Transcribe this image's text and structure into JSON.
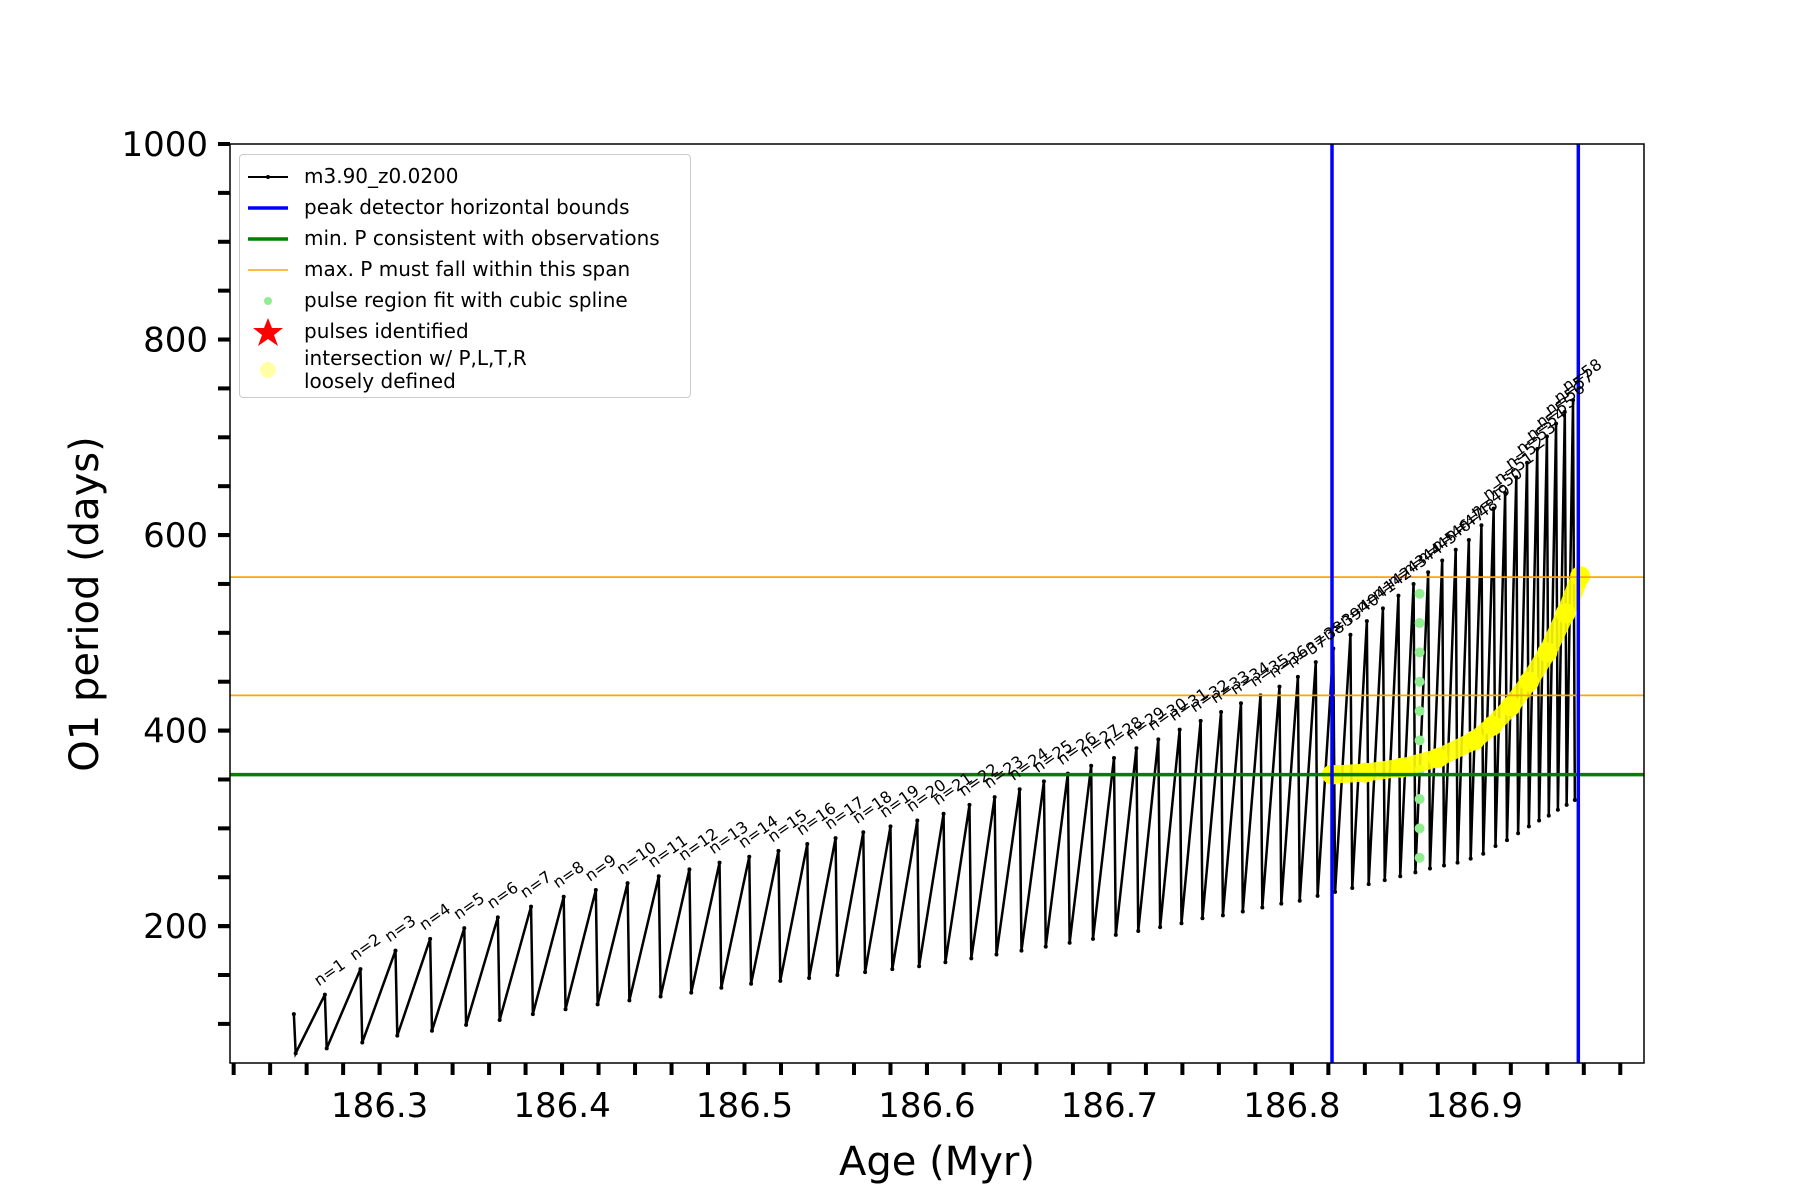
{
  "chart_data": {
    "type": "line",
    "xlabel": "Age (Myr)",
    "ylabel": "O1 period (days)",
    "xlim": [
      186.218,
      186.993
    ],
    "ylim": [
      60,
      1000
    ],
    "xticks": [
      186.3,
      186.4,
      186.5,
      186.6,
      186.7,
      186.8,
      186.9
    ],
    "xminor_ticks": [
      186.22,
      186.24,
      186.26,
      186.28,
      186.3,
      186.32,
      186.34,
      186.36,
      186.38,
      186.4,
      186.42,
      186.44,
      186.46,
      186.48,
      186.5,
      186.52,
      186.54,
      186.56,
      186.58,
      186.6,
      186.62,
      186.64,
      186.66,
      186.68,
      186.7,
      186.72,
      186.74,
      186.76,
      186.78,
      186.8,
      186.82,
      186.84,
      186.86,
      186.88,
      186.9,
      186.92,
      186.94,
      186.96,
      186.98
    ],
    "yticks": [
      200,
      400,
      600,
      800,
      1000
    ],
    "yminor_ticks": [
      100,
      150,
      200,
      250,
      300,
      350,
      400,
      450,
      500,
      550,
      600,
      650,
      700,
      750,
      800,
      850,
      900,
      950,
      1000
    ],
    "series": [
      {
        "name": "m3.90_z0.0200",
        "color": "#000000",
        "kind": "line",
        "x": [
          186.253,
          186.254,
          186.27,
          186.271,
          186.2895,
          186.2905,
          186.3087,
          186.3097,
          186.3277,
          186.3287,
          186.3464,
          186.3474,
          186.3648,
          186.3658,
          186.383,
          186.384,
          186.4009,
          186.4019,
          186.4185,
          186.4195,
          186.4359,
          186.4369,
          186.453,
          186.454,
          186.4698,
          186.4708,
          186.4863,
          186.4873,
          186.5026,
          186.5036,
          186.5186,
          186.5196,
          186.5344,
          186.5354,
          186.5499,
          186.5509,
          186.5651,
          186.5661,
          186.58,
          186.581,
          186.5947,
          186.5957,
          186.6091,
          186.6101,
          186.6233,
          186.6243,
          186.6371,
          186.6381,
          186.6508,
          186.6518,
          186.6641,
          186.6651,
          186.6772,
          186.6782,
          186.69,
          186.691,
          186.7025,
          186.7035,
          186.7148,
          186.7158,
          186.7268,
          186.7278,
          186.7385,
          186.7395,
          186.75,
          186.751,
          186.7612,
          186.7622,
          186.7721,
          186.7731,
          186.7828,
          186.7838,
          186.7932,
          186.7942,
          186.8033,
          186.8043,
          186.8131,
          186.8141,
          186.8227,
          186.8237,
          186.8321,
          186.8331,
          186.8411,
          186.8421,
          186.8499,
          186.8509,
          186.8584,
          186.8594,
          186.8667,
          186.8677,
          186.8747,
          186.8757,
          186.8824,
          186.8834,
          186.8898,
          186.8908,
          186.897,
          186.898,
          186.9039,
          186.9049,
          186.9106,
          186.9116,
          186.9169,
          186.9179,
          186.923,
          186.924,
          186.9289,
          186.9299,
          186.9345,
          186.9355,
          186.9398,
          186.9408,
          186.9448,
          186.9458,
          186.9496,
          186.9506,
          186.9541,
          186.9551
        ],
        "values": [
          110,
          70,
          130,
          75,
          156,
          81,
          175,
          88,
          187,
          93,
          198,
          99,
          209,
          104,
          220,
          110,
          230,
          115,
          237,
          120,
          244,
          124,
          251,
          128,
          258,
          132,
          265,
          137,
          271,
          141,
          277,
          144,
          284,
          147,
          290,
          150,
          296,
          153,
          302,
          156,
          308,
          159,
          315,
          163,
          324,
          167,
          332,
          171,
          340,
          175,
          348,
          179,
          356,
          183,
          364,
          187,
          372,
          191,
          382,
          195,
          391,
          199,
          401,
          203,
          410,
          208,
          419,
          211,
          428,
          215,
          436,
          219,
          445,
          223,
          455,
          226,
          470,
          231,
          484,
          235,
          498,
          239,
          512,
          243,
          525,
          247,
          538,
          251,
          550,
          255,
          562,
          259,
          574,
          262,
          585,
          265,
          595,
          269,
          610,
          274,
          627,
          282,
          643,
          288,
          659,
          295,
          674,
          302,
          688,
          308,
          701,
          313,
          714,
          319,
          726,
          324,
          738,
          329
        ]
      },
      {
        "name": "peak detector horizontal bounds",
        "color": "#0000ff",
        "kind": "vline",
        "values": [
          186.822,
          186.957
        ]
      },
      {
        "name": "min. P consistent with observations",
        "color": "#008000",
        "kind": "hline",
        "values": [
          355
        ]
      },
      {
        "name": "max. P must fall within this span",
        "color": "#ffa500",
        "kind": "hline",
        "values": [
          436,
          557
        ]
      },
      {
        "name": "pulse region fit with cubic spline",
        "color": "#90ee90",
        "kind": "points",
        "x": [
          186.87,
          186.87,
          186.87,
          186.87,
          186.87,
          186.87,
          186.87,
          186.87,
          186.87,
          186.87
        ],
        "values": [
          270,
          300,
          330,
          360,
          390,
          420,
          450,
          480,
          510,
          540
        ]
      },
      {
        "name": "pulses identified",
        "color": "#ff0000",
        "kind": "stars",
        "x": [],
        "values": []
      },
      {
        "name": "intersection w/ P,L,T,R\nloosely defined",
        "color": "#ffff00",
        "kind": "blob",
        "x": [
          186.822,
          186.84,
          186.86,
          186.88,
          186.9,
          186.91,
          186.92,
          186.93,
          186.94,
          186.95,
          186.958
        ],
        "values": [
          355,
          357,
          362,
          372,
          390,
          405,
          425,
          450,
          480,
          520,
          558
        ]
      }
    ],
    "pulse_labels": [
      "n=1",
      "n=2",
      "n=3",
      "n=4",
      "n=5",
      "n=6",
      "n=7",
      "n=8",
      "n=9",
      "n=10",
      "n=11",
      "n=12",
      "n=13",
      "n=14",
      "n=15",
      "n=16",
      "n=17",
      "n=18",
      "n=19",
      "n=20",
      "n=21",
      "n=22",
      "n=23",
      "n=24",
      "n=25",
      "n=26",
      "n=27",
      "n=28",
      "n=29",
      "n=30",
      "n=31",
      "n=32",
      "n=33",
      "n=34",
      "n=35",
      "n=36",
      "n=37",
      "n=38",
      "n=39",
      "n=40",
      "n=41",
      "n=42",
      "n=43",
      "n=44",
      "n=45",
      "n=46",
      "n=47",
      "n=48",
      "n=49",
      "n=50",
      "n=51",
      "n=52",
      "n=53",
      "n=54",
      "n=55",
      "n=56",
      "n=57",
      "n=58"
    ]
  }
}
